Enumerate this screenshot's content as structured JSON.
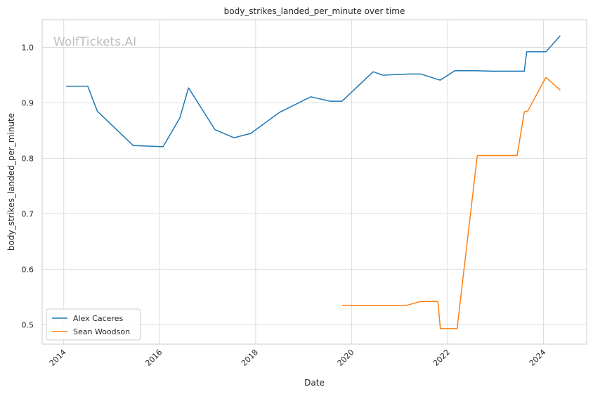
{
  "chart_data": {
    "type": "line",
    "title": "body_strikes_landed_per_minute over time",
    "xlabel": "Date",
    "ylabel": "body_strikes_landed_per_minute",
    "watermark": "WolfTickets.AI",
    "xlim": [
      2013.55,
      2024.9
    ],
    "ylim": [
      0.465,
      1.05
    ],
    "x_ticks": [
      2014,
      2016,
      2018,
      2020,
      2022,
      2024
    ],
    "y_ticks": [
      0.5,
      0.6,
      0.7,
      0.8,
      0.9,
      1.0
    ],
    "y_tick_labels": [
      "0.5",
      "0.6",
      "0.7",
      "0.8",
      "0.9",
      "1.0"
    ],
    "grid": true,
    "legend_position": "lower-left",
    "series": [
      {
        "name": "Alex Caceres",
        "color": "#1f77b4",
        "x": [
          2014.05,
          2014.5,
          2014.7,
          2015.45,
          2016.07,
          2016.42,
          2016.6,
          2017.15,
          2017.55,
          2017.9,
          2018.5,
          2019.15,
          2019.55,
          2019.8,
          2020.45,
          2020.65,
          2021.2,
          2021.45,
          2021.8,
          2021.85,
          2022.15,
          2022.6,
          2022.95,
          2023.6,
          2023.65,
          2024.05,
          2024.35
        ],
        "values": [
          0.93,
          0.93,
          0.885,
          0.823,
          0.821,
          0.873,
          0.927,
          0.852,
          0.837,
          0.845,
          0.883,
          0.911,
          0.903,
          0.903,
          0.956,
          0.95,
          0.952,
          0.952,
          0.942,
          0.941,
          0.958,
          0.958,
          0.957,
          0.957,
          0.992,
          0.992,
          1.021
        ]
      },
      {
        "name": "Sean Woodson",
        "color": "#ff7f0e",
        "x": [
          2019.8,
          2021.15,
          2021.45,
          2021.8,
          2021.85,
          2022.2,
          2022.62,
          2023.45,
          2023.6,
          2023.67,
          2024.05,
          2024.35
        ],
        "values": [
          0.535,
          0.535,
          0.542,
          0.542,
          0.493,
          0.493,
          0.805,
          0.805,
          0.884,
          0.885,
          0.946,
          0.923
        ]
      }
    ]
  }
}
